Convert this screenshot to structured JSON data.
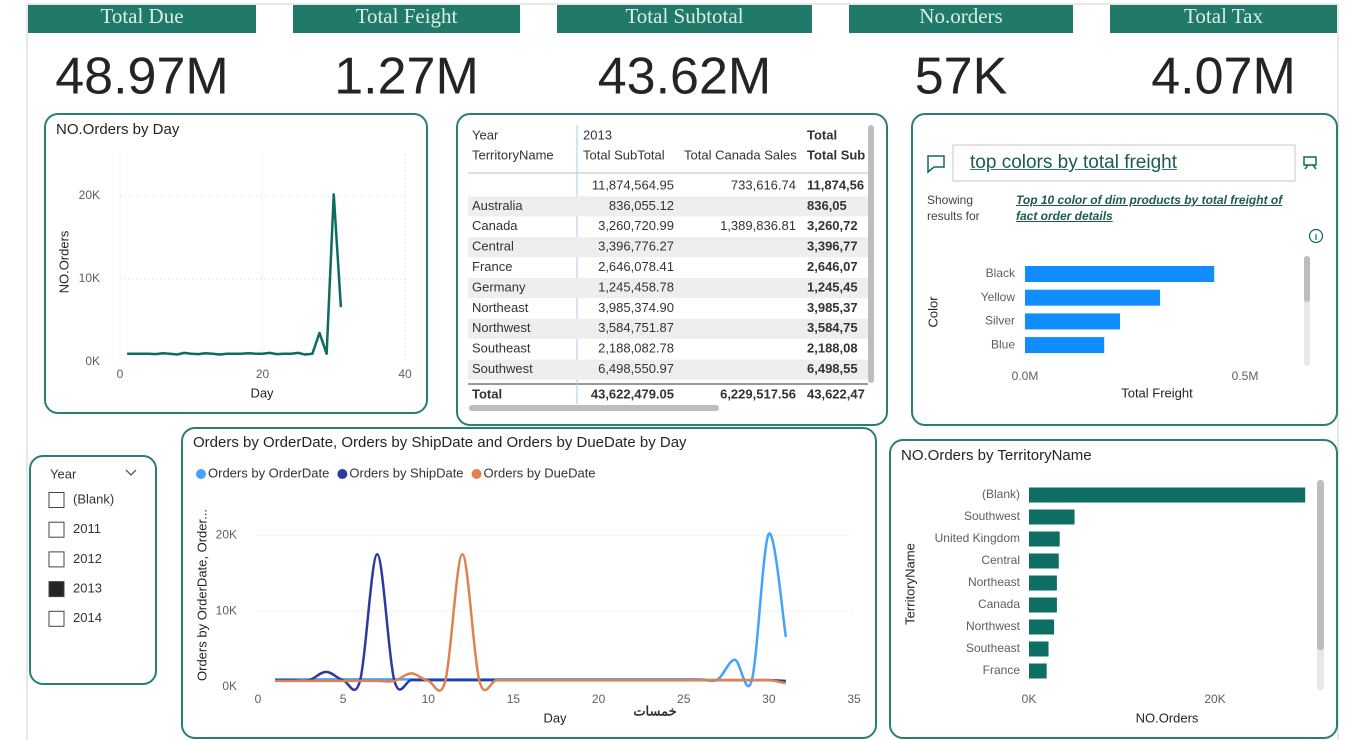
{
  "kpis": [
    {
      "label": "Total Due",
      "value": "48.97M"
    },
    {
      "label": "Total Feight",
      "value": "1.27M"
    },
    {
      "label": "Total Subtotal",
      "value": "43.62M"
    },
    {
      "label": "No.orders",
      "value": "57K"
    },
    {
      "label": "Total Tax",
      "value": "4.07M"
    }
  ],
  "table": {
    "header": [
      [
        "Year",
        "2013",
        null,
        "Total"
      ],
      [
        "TerritoryName",
        "Total SubTotal",
        "Total Canada Sales",
        "Total Sub"
      ]
    ],
    "rows": [
      [
        null,
        "11,874,564.95",
        "733,616.74",
        "11,874,56"
      ],
      [
        "Australia",
        "836,055.12",
        null,
        "836,05"
      ],
      [
        "Canada",
        "3,260,720.99",
        "1,389,836.81",
        "3,260,72"
      ],
      [
        "Central",
        "3,396,776.27",
        null,
        "3,396,77"
      ],
      [
        "France",
        "2,646,078.41",
        null,
        "2,646,07"
      ],
      [
        "Germany",
        "1,245,458.78",
        null,
        "1,245,45"
      ],
      [
        "Northeast",
        "3,985,374.90",
        null,
        "3,985,37"
      ],
      [
        "Northwest",
        "3,584,751.87",
        null,
        "3,584,75"
      ],
      [
        "Southeast",
        "2,188,082.78",
        null,
        "2,188,08"
      ],
      [
        "Southwest",
        "6,498,550.97",
        null,
        "6,498,55"
      ]
    ],
    "total": [
      "Total",
      "43,622,479.05",
      "6,229,517.56",
      "43,622,47"
    ]
  },
  "slicer": {
    "title": "Year",
    "items": [
      "(Blank)",
      "2011",
      "2012",
      "2013",
      "2014"
    ],
    "checked": [
      false,
      false,
      false,
      true,
      false
    ]
  },
  "qa": {
    "query": "top colors by total freight",
    "showing": "Showing results for",
    "result": "Top 10 color of dim products by total freight of fact order details"
  },
  "watermark": "خمسات",
  "chart_data": [
    {
      "type": "line",
      "title": "NO.Orders by Day",
      "x_label": "Day",
      "y_label": "NO.Orders",
      "x": [
        1,
        2,
        3,
        4,
        5,
        6,
        7,
        8,
        9,
        10,
        11,
        12,
        13,
        14,
        15,
        16,
        17,
        18,
        19,
        20,
        21,
        22,
        23,
        24,
        25,
        26,
        27,
        28,
        29,
        30,
        31
      ],
      "values": [
        1000,
        1000,
        1000,
        1000,
        950,
        1050,
        1000,
        900,
        1100,
        1000,
        950,
        1050,
        1000,
        900,
        1000,
        1000,
        1000,
        1050,
        1000,
        1000,
        1100,
        950,
        1000,
        1000,
        1100,
        900,
        1000,
        3500,
        1000,
        20200,
        6600
      ],
      "color": "#0e6b60",
      "xlim": [
        0,
        40
      ],
      "xticks": [
        0,
        20,
        40
      ],
      "ylim": [
        0,
        25000
      ],
      "yticks": [
        {
          "value": 0,
          "label": "0K"
        },
        {
          "value": 10000,
          "label": "10K"
        },
        {
          "value": 20000,
          "label": "20K"
        }
      ],
      "grid": "both"
    },
    {
      "type": "bar",
      "orientation": "horizontal",
      "x_label": "Total Freight",
      "y_label": "Color",
      "categories": [
        "Black",
        "Yellow",
        "Silver",
        "Blue"
      ],
      "values": [
        430000,
        307000,
        216000,
        180000
      ],
      "color": "#118dff",
      "xlim": [
        0,
        600000
      ],
      "xticks": [
        {
          "value": 0,
          "label": "0.0M"
        },
        {
          "value": 500000,
          "label": "0.5M"
        }
      ]
    },
    {
      "type": "line",
      "title": "Orders by OrderDate, Orders by ShipDate and Orders by DueDate by Day",
      "x_label": "Day",
      "y_label": "Orders by OrderDate, Order...",
      "smooth": true,
      "legend": "top-left",
      "grid": "y",
      "x": [
        1,
        2,
        3,
        4,
        5,
        6,
        7,
        8,
        9,
        10,
        11,
        12,
        13,
        14,
        15,
        16,
        17,
        18,
        19,
        20,
        21,
        22,
        23,
        24,
        25,
        26,
        27,
        28,
        29,
        30,
        31
      ],
      "series": [
        {
          "name": "Orders by OrderDate",
          "color": "#41a4ff",
          "values": [
            1000,
            1000,
            1000,
            1000,
            1000,
            1000,
            1000,
            1000,
            1000,
            1000,
            1000,
            1000,
            1000,
            1000,
            1000,
            1000,
            1000,
            1000,
            1000,
            1000,
            1000,
            1000,
            1000,
            1000,
            1000,
            1000,
            1000,
            3600,
            900,
            20200,
            6600
          ]
        },
        {
          "name": "Orders by ShipDate",
          "color": "#2e3a9e",
          "values": [
            900,
            900,
            900,
            2000,
            900,
            900,
            17500,
            900,
            900,
            900,
            900,
            900,
            900,
            900,
            900,
            900,
            900,
            900,
            900,
            900,
            900,
            900,
            900,
            900,
            900,
            900,
            900,
            900,
            900,
            900,
            800
          ]
        },
        {
          "name": "Orders by DueDate",
          "color": "#e0814f",
          "values": [
            800,
            800,
            800,
            800,
            800,
            800,
            800,
            800,
            1800,
            800,
            800,
            17500,
            800,
            900,
            900,
            900,
            900,
            900,
            900,
            900,
            900,
            900,
            900,
            900,
            900,
            900,
            900,
            900,
            900,
            900,
            500
          ]
        }
      ],
      "xlim": [
        0,
        35
      ],
      "xticks": [
        0,
        5,
        10,
        15,
        20,
        25,
        30,
        35
      ],
      "ylim": [
        0,
        24000
      ],
      "yticks": [
        {
          "value": 0,
          "label": "0K"
        },
        {
          "value": 10000,
          "label": "10K"
        },
        {
          "value": 20000,
          "label": "20K"
        }
      ]
    },
    {
      "type": "bar",
      "orientation": "horizontal",
      "title": "NO.Orders by TerritoryName",
      "x_label": "NO.Orders",
      "y_label": "TerritoryName",
      "categories": [
        "(Blank)",
        "Southwest",
        "United Kingdom",
        "Central",
        "Northeast",
        "Canada",
        "Northwest",
        "Southeast",
        "France"
      ],
      "values": [
        29700,
        4900,
        3300,
        3200,
        3000,
        3000,
        2700,
        2100,
        1900
      ],
      "color": "#0f6e63",
      "xlim": [
        0,
        30000
      ],
      "xticks": [
        {
          "value": 0,
          "label": "0K"
        },
        {
          "value": 20000,
          "label": "20K"
        }
      ]
    }
  ]
}
